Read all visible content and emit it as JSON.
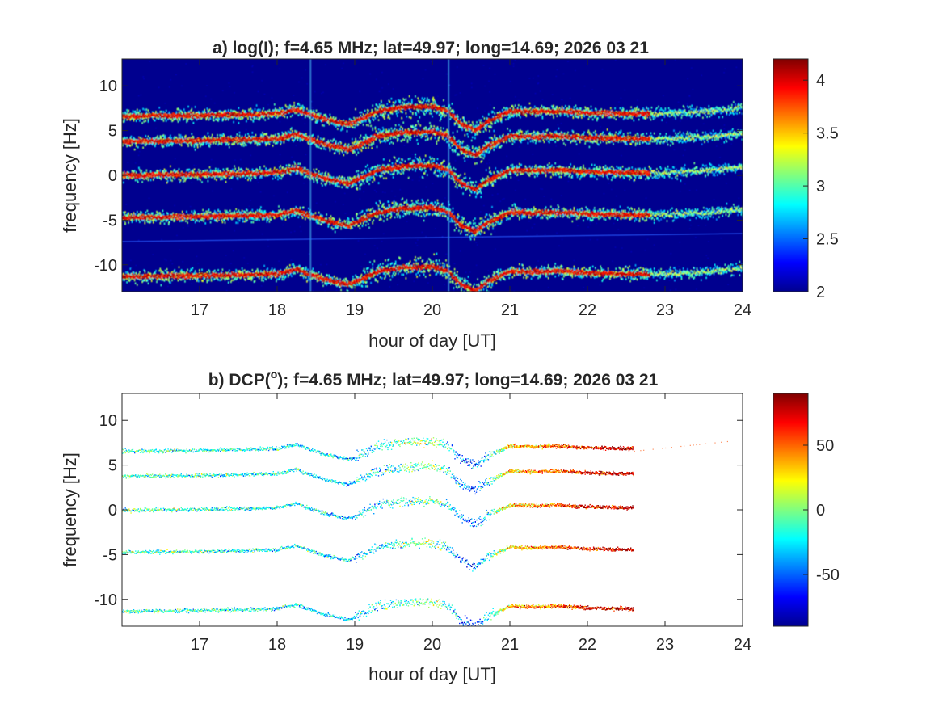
{
  "panels": [
    {
      "id": "a",
      "title": "a) log(I); f=4.65 MHz;  lat=49.97; long=14.69; 2026 03 21",
      "xlabel": "hour of day [UT]",
      "ylabel": "frequency [Hz]"
    },
    {
      "id": "b",
      "title_prefix": "b) DCP(",
      "title_sup": "o",
      "title_suffix": "); f=4.65 MHz;  lat=49.97; long=14.69; 2026 03 21",
      "xlabel": "hour of day [UT]",
      "ylabel": "frequency [Hz]"
    }
  ],
  "chart_data": [
    {
      "type": "heatmap",
      "title": "a) log(I); f=4.65 MHz;  lat=49.97; long=14.69; 2026 03 21",
      "xlabel": "hour of day [UT]",
      "ylabel": "frequency [Hz]",
      "xlim": [
        16,
        24
      ],
      "ylim": [
        -13,
        13
      ],
      "xticks": [
        17,
        18,
        19,
        20,
        21,
        22,
        23,
        24
      ],
      "yticks": [
        10,
        5,
        0,
        -5,
        -10
      ],
      "colorbar": {
        "range": [
          2,
          4.2
        ],
        "ticks": [
          4,
          3.5,
          3,
          2.5,
          2
        ],
        "colormap": "jet"
      },
      "background_color": "#00008f",
      "trace_end_hour": 24,
      "ridge_offsets_hz": [
        6.6,
        3.8,
        0,
        -4.7,
        -11.3
      ],
      "ridge_profile": {
        "hours": [
          16.0,
          17.0,
          17.6,
          18.0,
          18.25,
          18.35,
          18.6,
          18.9,
          19.0,
          19.3,
          19.6,
          20.0,
          20.2,
          20.35,
          20.55,
          20.7,
          21.0,
          21.3,
          21.6,
          22.0,
          22.5,
          23.0,
          23.5,
          24.0
        ],
        "shift_hz": [
          0.0,
          0.1,
          0.2,
          0.3,
          0.8,
          0.4,
          -0.3,
          -0.9,
          -0.6,
          0.6,
          1.0,
          1.1,
          0.6,
          -0.8,
          -1.6,
          -0.6,
          0.6,
          0.5,
          0.6,
          0.4,
          0.3,
          0.3,
          0.5,
          0.9
        ]
      },
      "intense_until_hour": 22.8
    },
    {
      "type": "scatter",
      "title": "b) DCP(o); f=4.65 MHz;  lat=49.97; long=14.69; 2026 03 21",
      "xlabel": "hour of day [UT]",
      "ylabel": "frequency [Hz]",
      "xlim": [
        16,
        24
      ],
      "ylim": [
        -13,
        13
      ],
      "xticks": [
        17,
        18,
        19,
        20,
        21,
        22,
        23,
        24
      ],
      "yticks": [
        10,
        5,
        0,
        -5,
        -10
      ],
      "colorbar": {
        "range": [
          -90,
          90
        ],
        "ticks": [
          50,
          0,
          -50
        ],
        "colormap": "jet"
      },
      "background_color": "#ffffff",
      "trace_end_hour": 22.6,
      "ridge_offsets_hz": [
        6.6,
        3.8,
        0,
        -4.7,
        -11.3
      ],
      "dcp_trend": {
        "hours": [
          16.0,
          18.0,
          19.0,
          20.0,
          20.5,
          21.0,
          22.0,
          22.6
        ],
        "dcp_deg": [
          -10,
          -20,
          -30,
          0,
          -60,
          30,
          70,
          80
        ]
      }
    }
  ]
}
